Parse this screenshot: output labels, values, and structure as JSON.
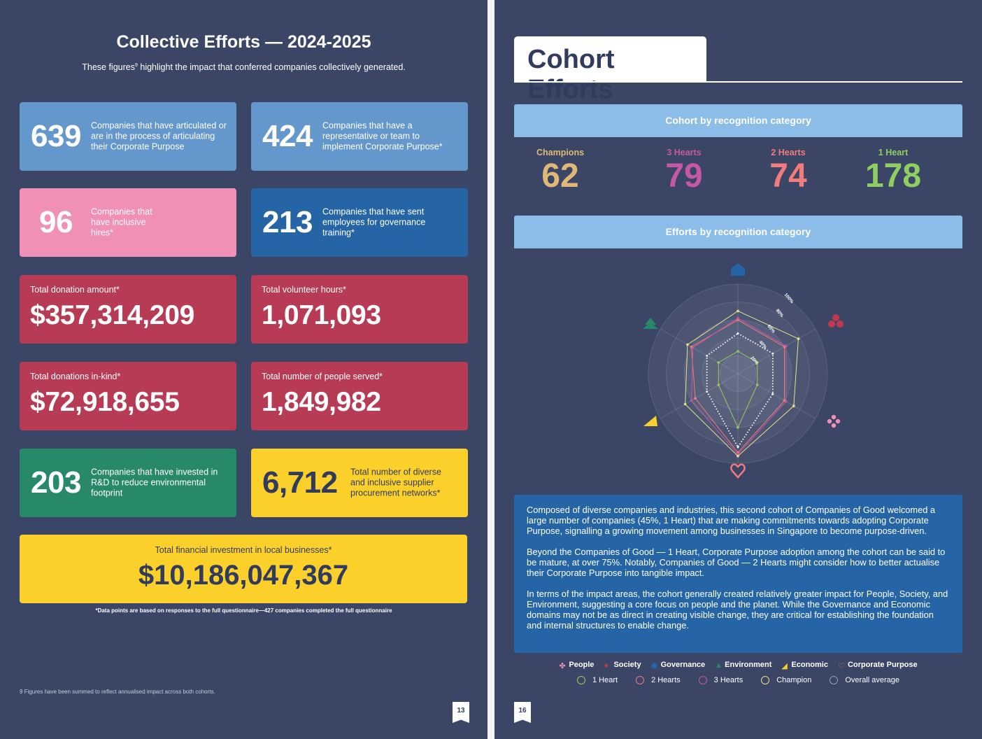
{
  "left": {
    "title": "Collective Efforts — 2024-2025",
    "subtitle": "These figures",
    "subtitle_sup": "9",
    "subtitle_rest": " highlight the impact that conferred companies collectively generated.",
    "stats": [
      {
        "number": "639",
        "text": "Companies that have articulated or are in the process of articulating their Corporate Purpose"
      },
      {
        "number": "424",
        "text": "Companies that have a representative or team to implement Corporate Purpose*"
      },
      {
        "number": "96",
        "text": "Companies that have inclusive hires*"
      },
      {
        "number": "213",
        "text": "Companies that have sent employees for governance training*"
      }
    ],
    "totals": [
      {
        "label": "Total donation amount*",
        "value": "$357,314,209"
      },
      {
        "label": "Total volunteer hours*",
        "value": "1,071,093"
      },
      {
        "label": "Total donations in-kind*",
        "value": "$72,918,655"
      },
      {
        "label": "Total number of people served*",
        "value": "1,849,982"
      }
    ],
    "rd": {
      "number": "203",
      "text": "Companies that have invested in R&D to reduce environmental footprint"
    },
    "supplier": {
      "number": "6,712",
      "text": "Total number of diverse and inclusive supplier procurement networks*"
    },
    "investment": {
      "label": "Total financial investment in local businesses*",
      "value": "$10,186,047,367"
    },
    "data_note": "*Data points are based on responses to the full questionnaire—427 companies completed the full questionnaire",
    "footnote": "9    Figures have been summed to reflect annualised impact across both cohorts.",
    "page_number": "13"
  },
  "right": {
    "title": "Cohort Efforts",
    "section_cohort": "Cohort by recognition category",
    "categories": [
      {
        "label": "Champions",
        "count": "62"
      },
      {
        "label": "3 Hearts",
        "count": "79"
      },
      {
        "label": "2 Hearts",
        "count": "74"
      },
      {
        "label": "1 Heart",
        "count": "178"
      }
    ],
    "section_efforts": "Efforts by recognition category",
    "description": [
      "Composed of diverse companies and industries, this second cohort of Companies of Good welcomed a large number of companies (45%, 1 Heart) that are making commitments towards adopting Corporate Purpose, signalling a growing movement among businesses in Singapore to become purpose-driven.",
      "Beyond the Companies of Good — 1 Heart, Corporate Purpose adoption among the cohort can be said to be mature, at over 75%. Notably, Companies of Good — 2 Hearts might consider how to better actualise their Corporate Purpose into tangible impact.",
      "In terms of the impact areas, the cohort generally created relatively greater impact for People, Society, and Environment, suggesting a core focus on people and the planet. While the Governance and Economic domains may not be as direct in creating visible change, they are critical for establishing the foundation and internal structures to enable change."
    ],
    "impact_areas": [
      {
        "label": "People",
        "color": "#ef90b4",
        "icon": "people-icon"
      },
      {
        "label": "Society",
        "color": "#c0394f",
        "icon": "society-icon"
      },
      {
        "label": "Governance",
        "color": "#2565a5",
        "icon": "governance-icon"
      },
      {
        "label": "Environment",
        "color": "#288968",
        "icon": "environment-icon"
      },
      {
        "label": "Economic",
        "color": "#fcd02a",
        "icon": "economic-icon"
      },
      {
        "label": "Corporate Purpose",
        "color": "#f17c7b",
        "icon": "heart-icon"
      }
    ],
    "series_legend": [
      {
        "label": "1 Heart",
        "color": "#8fcf61"
      },
      {
        "label": "2 Hearts",
        "color": "#f17c7b"
      },
      {
        "label": "3 Hearts",
        "color": "#c458a6"
      },
      {
        "label": "Champion",
        "color": "#e6e38a"
      },
      {
        "label": "Overall average",
        "color": "#ffffff"
      }
    ],
    "page_number": "16"
  },
  "chart_data": {
    "type": "radar",
    "axes": [
      "Governance",
      "Society",
      "People",
      "Corporate Purpose",
      "Economic",
      "Environment"
    ],
    "tick_labels": [
      "20%",
      "40%",
      "60%",
      "80%",
      "100%"
    ],
    "series": [
      {
        "name": "1 Heart",
        "color": "#8fcf61",
        "values": [
          25,
          25,
          25,
          60,
          25,
          25
        ]
      },
      {
        "name": "2 Hearts",
        "color": "#f17c7b",
        "values": [
          60,
          60,
          60,
          88,
          55,
          60
        ]
      },
      {
        "name": "3 Hearts",
        "color": "#c458a6",
        "values": [
          62,
          62,
          62,
          90,
          60,
          58
        ]
      },
      {
        "name": "Champion",
        "color": "#e6e38a",
        "values": [
          70,
          78,
          72,
          92,
          68,
          65
        ]
      },
      {
        "name": "Overall average",
        "color": "#ffffff",
        "values": [
          45,
          45,
          45,
          82,
          40,
          40
        ]
      }
    ]
  }
}
